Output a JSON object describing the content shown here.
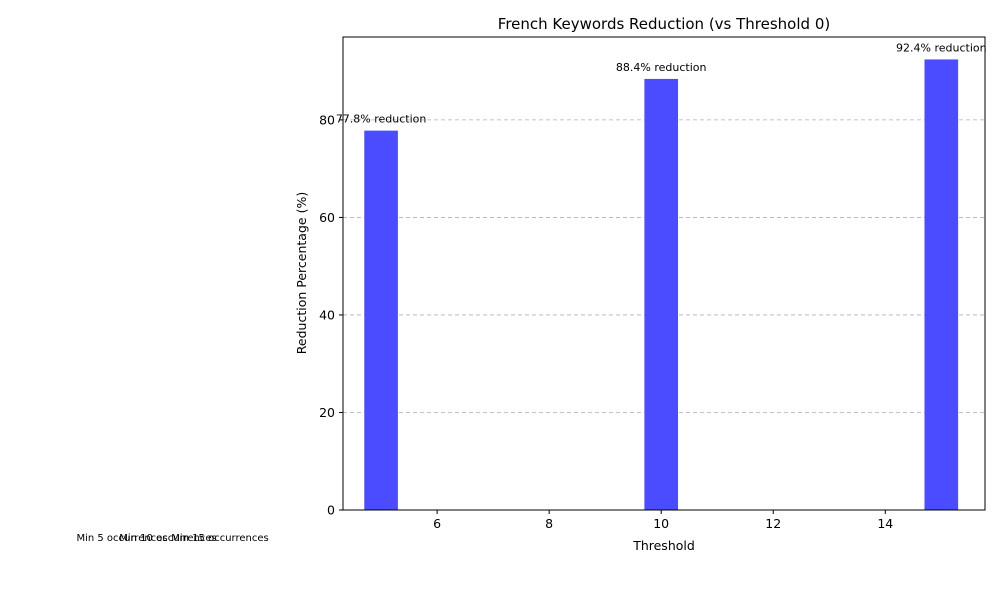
{
  "chart_data": {
    "type": "bar",
    "title": "French Keywords Reduction (vs Threshold 0)",
    "xlabel": "Threshold",
    "ylabel": "Reduction Percentage (%)",
    "x": [
      5,
      10,
      15
    ],
    "values": [
      77.8,
      88.4,
      92.4
    ],
    "bar_width": 0.6,
    "bar_color": "#4b4bff",
    "data_labels": [
      "77.8% reduction",
      "88.4% reduction",
      "92.4% reduction"
    ],
    "xlim": [
      4.32,
      15.78
    ],
    "ylim": [
      0,
      97
    ],
    "xticks": [
      6,
      8,
      10,
      12,
      14
    ],
    "yticks": [
      0,
      20,
      40,
      60,
      80
    ],
    "grid": "y-dashed",
    "bottom_annotations": [
      "Min 5 occurrences",
      "Min 10 occurrences",
      "Min 15 occurrences"
    ]
  }
}
